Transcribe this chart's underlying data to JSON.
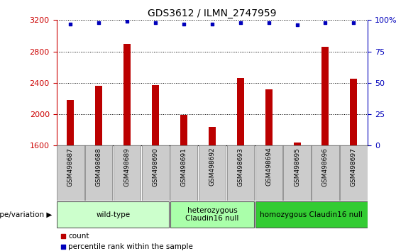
{
  "title": "GDS3612 / ILMN_2747959",
  "samples": [
    "GSM498687",
    "GSM498688",
    "GSM498689",
    "GSM498690",
    "GSM498691",
    "GSM498692",
    "GSM498693",
    "GSM498694",
    "GSM498695",
    "GSM498696",
    "GSM498697"
  ],
  "counts": [
    2180,
    2360,
    2900,
    2370,
    1990,
    1840,
    2460,
    2320,
    1640,
    2860,
    2450
  ],
  "percentile_ranks": [
    97,
    98,
    99,
    98,
    97,
    97,
    98,
    98,
    96,
    98,
    98
  ],
  "ylim_left": [
    1600,
    3200
  ],
  "ylim_right": [
    0,
    100
  ],
  "yticks_left": [
    1600,
    2000,
    2400,
    2800,
    3200
  ],
  "yticks_right": [
    0,
    25,
    50,
    75,
    100
  ],
  "bar_color": "#BB0000",
  "dot_color": "#0000BB",
  "groups": [
    {
      "label": "wild-type",
      "start": 0,
      "end": 3,
      "color": "#CCFFCC"
    },
    {
      "label": "heterozygous\nClaudin16 null",
      "start": 4,
      "end": 6,
      "color": "#AAFFAA"
    },
    {
      "label": "homozygous Claudin16 null",
      "start": 7,
      "end": 10,
      "color": "#33CC33"
    }
  ],
  "xlabel_group": "genotype/variation",
  "legend_count_label": "count",
  "legend_pct_label": "percentile rank within the sample",
  "tick_label_color_left": "#CC0000",
  "tick_label_color_right": "#0000BB",
  "bar_bottom": 1600,
  "bar_width": 0.25
}
